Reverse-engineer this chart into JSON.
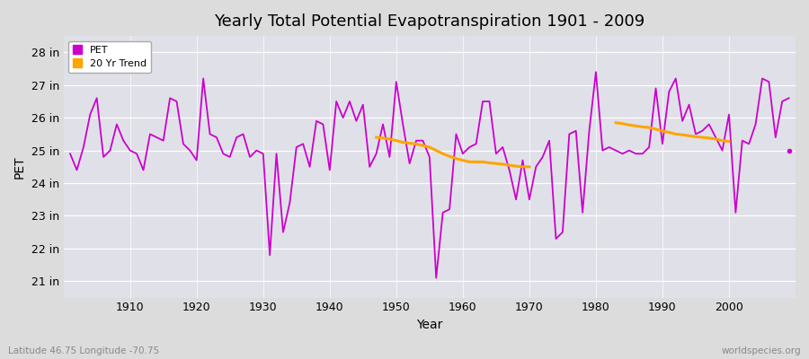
{
  "title": "Yearly Total Potential Evapotranspiration 1901 - 2009",
  "ylabel": "PET",
  "xlabel": "Year",
  "subtitle_left": "Latitude 46.75 Longitude -70.75",
  "subtitle_right": "worldspecies.org",
  "pet_color": "#CC00CC",
  "trend_color": "#FFA500",
  "background_color": "#DCDCDC",
  "plot_bg_color": "#E0E0E8",
  "grid_color": "#FFFFFF",
  "ylim": [
    20.5,
    28.5
  ],
  "xlim": [
    1900,
    2010
  ],
  "ytick_labels": [
    "21 in",
    "22 in",
    "23 in",
    "24 in",
    "25 in",
    "26 in",
    "27 in",
    "28 in"
  ],
  "ytick_values": [
    21,
    22,
    23,
    24,
    25,
    26,
    27,
    28
  ],
  "xtick_values": [
    1910,
    1920,
    1930,
    1940,
    1950,
    1960,
    1970,
    1980,
    1990,
    2000
  ],
  "years": [
    1901,
    1902,
    1903,
    1904,
    1905,
    1906,
    1907,
    1908,
    1909,
    1910,
    1911,
    1912,
    1913,
    1914,
    1915,
    1916,
    1917,
    1918,
    1919,
    1920,
    1921,
    1922,
    1923,
    1924,
    1925,
    1926,
    1927,
    1928,
    1929,
    1930,
    1931,
    1932,
    1933,
    1934,
    1935,
    1936,
    1937,
    1938,
    1939,
    1940,
    1941,
    1942,
    1943,
    1944,
    1945,
    1946,
    1947,
    1948,
    1949,
    1950,
    1951,
    1952,
    1953,
    1954,
    1955,
    1956,
    1957,
    1958,
    1959,
    1960,
    1961,
    1962,
    1963,
    1964,
    1965,
    1966,
    1967,
    1968,
    1969,
    1970,
    1971,
    1972,
    1973,
    1974,
    1975,
    1976,
    1977,
    1978,
    1979,
    1980,
    1981,
    1982,
    1983,
    1984,
    1985,
    1986,
    1987,
    1988,
    1989,
    1990,
    1991,
    1992,
    1993,
    1994,
    1995,
    1996,
    1997,
    1998,
    1999,
    2000,
    2001,
    2002,
    2003,
    2004,
    2005,
    2006,
    2007,
    2008,
    2009
  ],
  "pet_values": [
    24.9,
    24.4,
    25.1,
    26.1,
    26.6,
    24.8,
    25.0,
    25.8,
    25.3,
    25.0,
    24.9,
    24.4,
    25.5,
    25.4,
    25.3,
    26.6,
    26.5,
    25.2,
    25.0,
    24.7,
    27.2,
    25.5,
    25.4,
    24.9,
    24.8,
    25.4,
    25.5,
    24.8,
    25.0,
    24.9,
    21.8,
    24.9,
    22.5,
    23.4,
    25.1,
    25.2,
    24.5,
    25.9,
    25.8,
    24.4,
    26.5,
    26.0,
    26.5,
    25.9,
    26.4,
    24.5,
    24.9,
    25.8,
    24.8,
    27.1,
    25.8,
    24.6,
    25.3,
    25.3,
    24.8,
    21.1,
    23.1,
    23.2,
    25.5,
    24.9,
    25.1,
    25.2,
    26.5,
    26.5,
    24.9,
    25.1,
    24.4,
    23.5,
    24.7,
    23.5,
    24.5,
    24.8,
    25.3,
    22.3,
    22.5,
    25.5,
    25.6,
    23.1,
    25.6,
    27.4,
    25.0,
    25.1,
    25.0,
    24.9,
    25.0,
    24.9,
    24.9,
    25.1,
    26.9,
    25.2,
    26.8,
    27.2,
    25.9,
    26.4,
    25.5,
    25.6,
    25.8,
    25.4,
    25.0,
    26.1,
    23.1,
    25.3,
    25.2,
    25.8,
    27.2,
    27.1,
    25.4,
    26.5,
    26.6
  ],
  "trend_seg1_years": [
    1947,
    1948,
    1949,
    1950,
    1951,
    1952,
    1953,
    1954,
    1955,
    1956,
    1957,
    1958,
    1959,
    1960,
    1961,
    1962,
    1963,
    1964,
    1965,
    1966,
    1967,
    1968,
    1969,
    1970
  ],
  "trend_seg1_values": [
    25.4,
    25.38,
    25.35,
    25.3,
    25.25,
    25.22,
    25.2,
    25.15,
    25.1,
    25.0,
    24.9,
    24.82,
    24.75,
    24.7,
    24.65,
    24.65,
    24.65,
    24.62,
    24.6,
    24.58,
    24.55,
    24.52,
    24.5,
    24.5
  ],
  "trend_seg2_years": [
    1983,
    1984,
    1985,
    1986,
    1987,
    1988,
    1989,
    1990,
    1991,
    1992,
    1993,
    1994,
    1995,
    1996,
    1997,
    1998,
    1999,
    2000
  ],
  "trend_seg2_values": [
    25.85,
    25.82,
    25.78,
    25.75,
    25.72,
    25.7,
    25.65,
    25.6,
    25.55,
    25.5,
    25.48,
    25.45,
    25.42,
    25.4,
    25.38,
    25.35,
    25.3,
    25.28
  ],
  "dot_year": 2009,
  "dot_value": 25.0,
  "legend_pet_label": "PET",
  "legend_trend_label": "20 Yr Trend"
}
